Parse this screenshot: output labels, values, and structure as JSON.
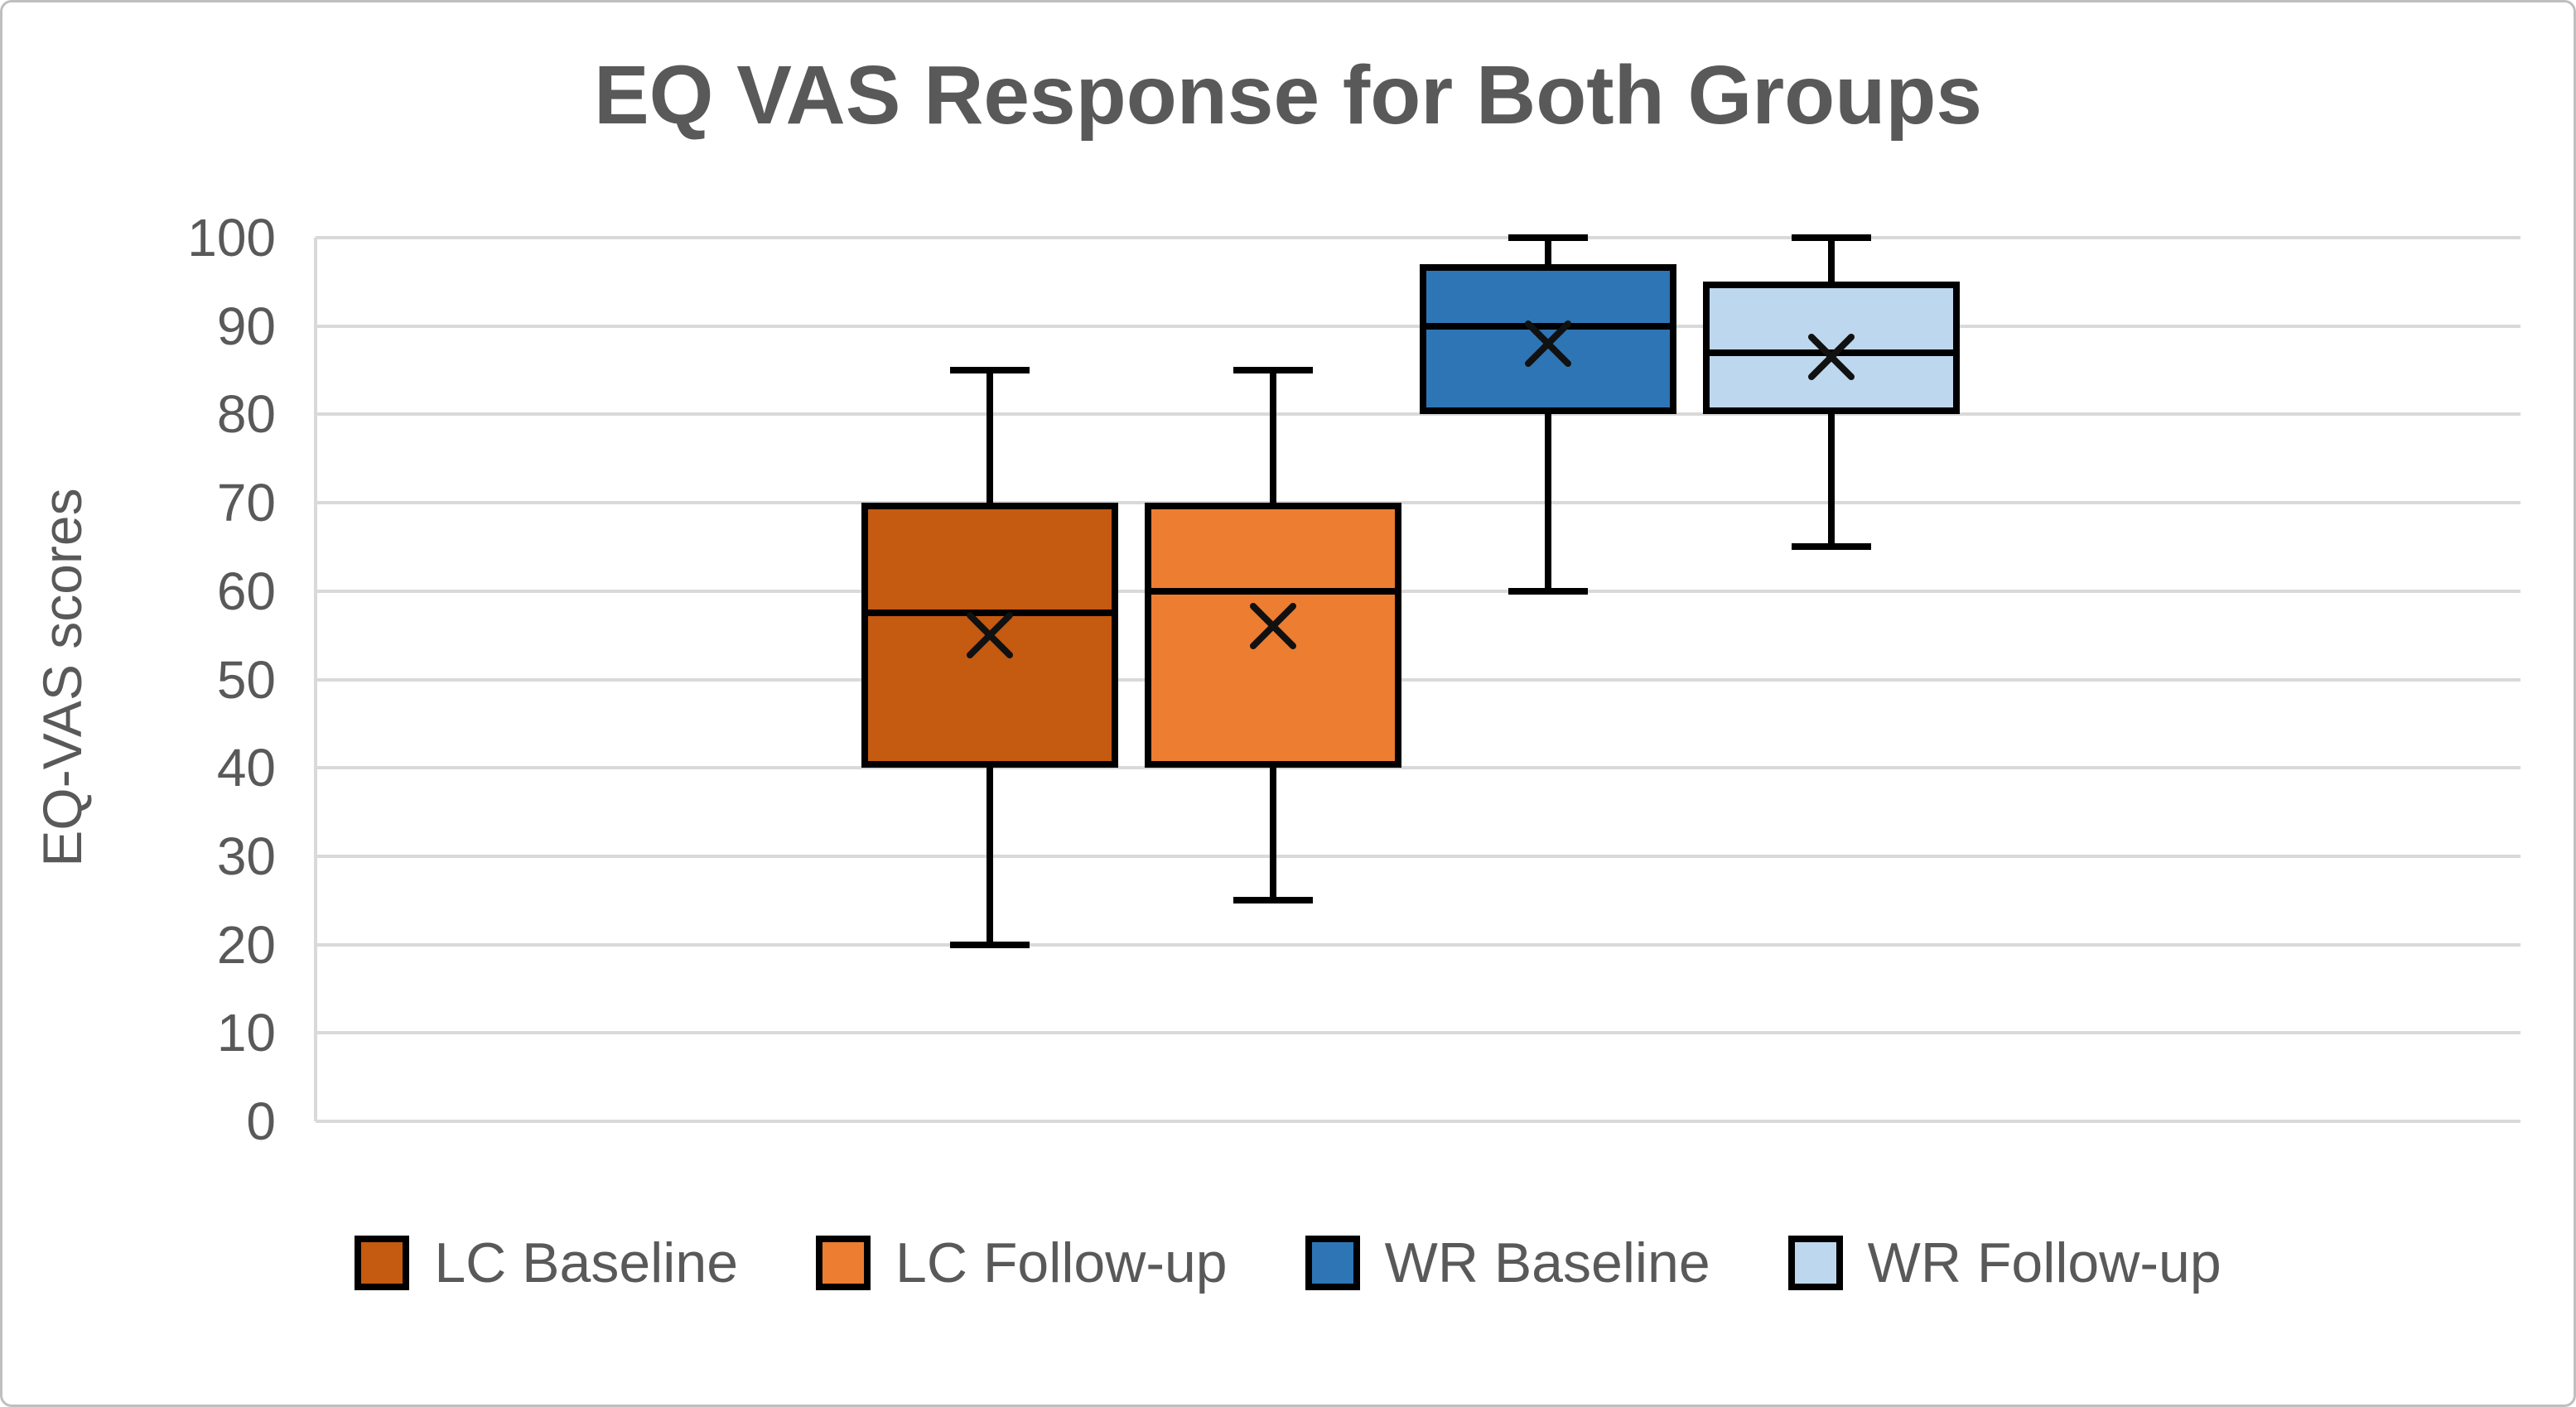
{
  "window": {
    "background": "#FFFFFF",
    "border_color": "#BFBFBF"
  },
  "colors": {
    "title_text": "#595959",
    "axis_text": "#595959",
    "gridline": "#D9D9D9",
    "box_stroke": "#000000",
    "lc_baseline": "#C55A11",
    "lc_followup": "#ED7D31",
    "wr_baseline": "#2E75B6",
    "wr_followup": "#BDD7EE"
  },
  "chart_data": {
    "type": "boxplot",
    "title": "EQ VAS Response for Both Groups",
    "xlabel": "",
    "ylabel": "EQ-VAS scores",
    "ylim": [
      0,
      100
    ],
    "yticks": [
      0,
      10,
      20,
      30,
      40,
      50,
      60,
      70,
      80,
      90,
      100
    ],
    "grid": "horizontal gridlines on, color #D9D9D9",
    "legend_position": "bottom-center",
    "mean_marker": "x",
    "series": [
      {
        "name": "LC Baseline",
        "fill": "#C55A11",
        "whisker_low": 20,
        "q1": 40,
        "median": 57.5,
        "q3": 70,
        "whisker_high": 85,
        "mean": 55
      },
      {
        "name": "LC Follow-up",
        "fill": "#ED7D31",
        "whisker_low": 25,
        "q1": 40,
        "median": 60,
        "q3": 70,
        "whisker_high": 85,
        "mean": 56
      },
      {
        "name": "WR Baseline",
        "fill": "#2E75B6",
        "whisker_low": 60,
        "q1": 80,
        "median": 90,
        "q3": 97,
        "whisker_high": 100,
        "mean": 88
      },
      {
        "name": "WR Follow-up",
        "fill": "#BDD7EE",
        "whisker_low": 65,
        "q1": 80,
        "median": 87,
        "q3": 95,
        "whisker_high": 100,
        "mean": 86.5
      }
    ]
  }
}
